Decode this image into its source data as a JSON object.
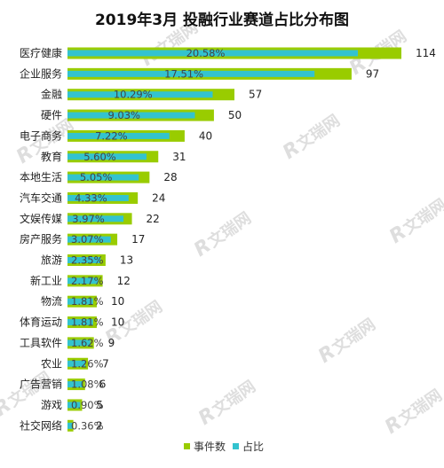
{
  "chart_data": {
    "type": "bar",
    "title": "2019年3月 投融行业赛道占比分布图",
    "categories": [
      "医疗健康",
      "企业服务",
      "金融",
      "硬件",
      "电子商务",
      "教育",
      "本地生活",
      "汽车交通",
      "文娱传媒",
      "房产服务",
      "旅游",
      "新工业",
      "物流",
      "体育运动",
      "工具软件",
      "农业",
      "广告营销",
      "游戏",
      "社交网络"
    ],
    "series": [
      {
        "name": "事件数",
        "color": "#99cc00",
        "values": [
          114,
          97,
          57,
          50,
          40,
          31,
          28,
          24,
          22,
          17,
          13,
          12,
          10,
          10,
          9,
          7,
          6,
          5,
          2
        ]
      },
      {
        "name": "占比",
        "color": "#33c3cf",
        "values": [
          20.58,
          17.51,
          10.29,
          9.03,
          7.22,
          5.6,
          5.05,
          4.33,
          3.97,
          3.07,
          2.35,
          2.17,
          1.81,
          1.81,
          1.62,
          1.26,
          1.08,
          0.9,
          0.36
        ],
        "labels": [
          "20.58%",
          "17.51%",
          "10.29%",
          "9.03%",
          "7.22%",
          "5.60%",
          "5.05%",
          "4.33%",
          "3.97%",
          "3.07%",
          "2.35%",
          "2.17%",
          "1.81%",
          "1.81%",
          "1.62%",
          "1.26%",
          "1.08%",
          "0.90%",
          "0.36%"
        ]
      }
    ],
    "legend_position": "bottom-center",
    "grid": false
  },
  "watermark": "文瑞网"
}
